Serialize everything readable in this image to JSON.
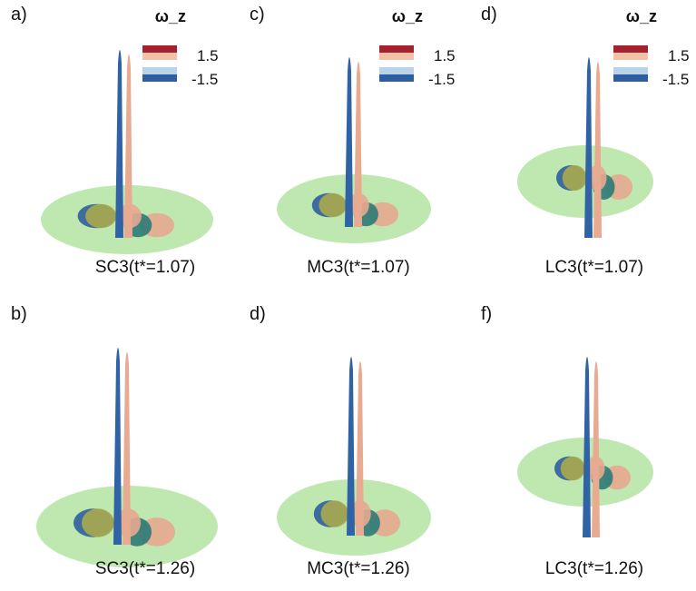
{
  "panels": [
    {
      "label": "a)",
      "caption": "SC3(t*=1.07)",
      "legend": {
        "title": "ω_z",
        "max": 1.5,
        "min": -1.5
      }
    },
    {
      "label": "c)",
      "caption": "MC3(t*=1.07)",
      "legend": {
        "title": "ω_z",
        "max": 1.5,
        "min": -1.5
      }
    },
    {
      "label": "d)",
      "caption": "LC3(t*=1.07)",
      "legend": {
        "title": "ω_z",
        "max": 1.5,
        "min": -1.5
      }
    },
    {
      "label": "b)",
      "caption": "SC3(t*=1.26)"
    },
    {
      "label": "d)",
      "caption": "MC3(t*=1.26)"
    },
    {
      "label": "f)",
      "caption": "LC3(t*=1.26)"
    }
  ]
}
